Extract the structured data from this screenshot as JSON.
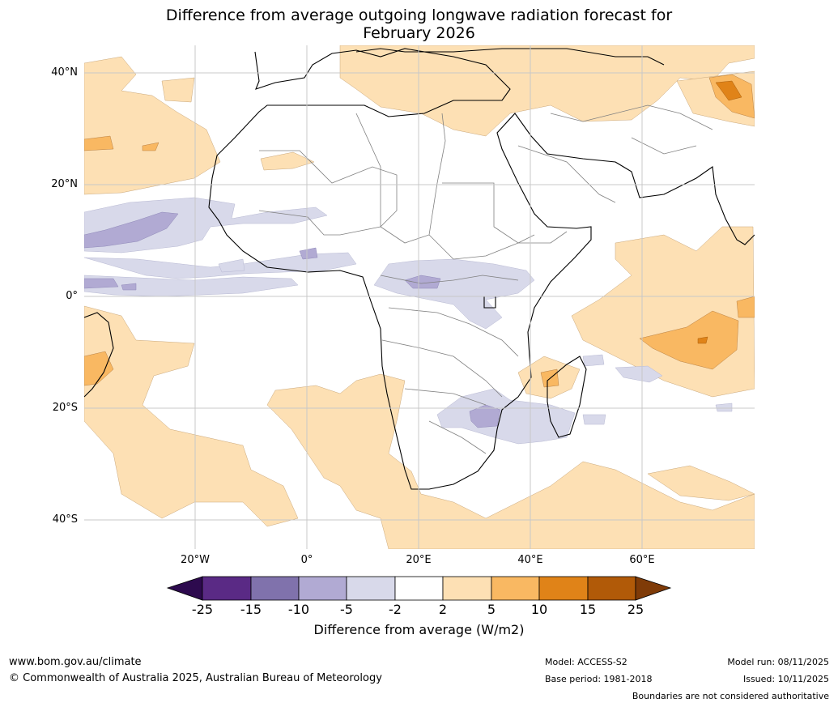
{
  "title": {
    "line1": "Difference from average outgoing longwave radiation forecast for",
    "line2": "February 2026"
  },
  "axes": {
    "lat_labels": [
      "40°N",
      "20°N",
      "0°",
      "20°S",
      "40°S"
    ],
    "lon_labels": [
      "20°W",
      "0°",
      "20°E",
      "40°E",
      "60°E"
    ]
  },
  "colorbar": {
    "label": "Difference from average (W/m2)",
    "ticks": [
      "-25",
      "-15",
      "-10",
      "-5",
      "-2",
      "2",
      "5",
      "10",
      "15",
      "25"
    ],
    "colors": [
      "#2d0a4e",
      "#5a2a85",
      "#8072ac",
      "#b1aad3",
      "#d8d9ea",
      "#ffffff",
      "#fde0b4",
      "#f9b862",
      "#e08318",
      "#b15a08",
      "#7f3b08"
    ]
  },
  "footer": {
    "website": "www.bom.gov.au/climate",
    "copyright": "© Commonwealth of Australia 2025, Australian Bureau of Meteorology",
    "model": "Model: ACCESS-S2",
    "base_period": "Base period: 1981-2018",
    "model_run": "Model run: 08/11/2025",
    "issued": "Issued: 10/11/2025",
    "disclaimer": "Boundaries are not considered authoritative"
  }
}
